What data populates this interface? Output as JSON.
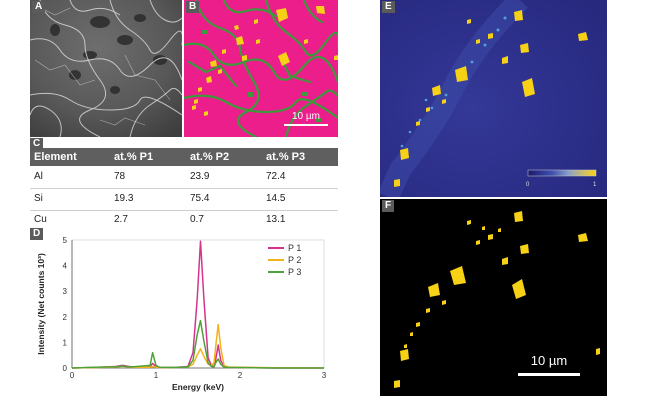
{
  "panels": {
    "a": {
      "label": "A"
    },
    "b": {
      "label": "B",
      "scale_bar": "10 µm"
    },
    "c": {
      "label": "C"
    },
    "d": {
      "label": "D"
    },
    "e": {
      "label": "E",
      "colorbar_min": "0",
      "colorbar_max": "1"
    },
    "f": {
      "label": "F",
      "scale_bar": "10 µm"
    }
  },
  "table": {
    "headers": [
      "Element",
      "at.% P1",
      "at.% P2",
      "at.% P3"
    ],
    "rows": [
      [
        "Al",
        "78",
        "23.9",
        "72.4"
      ],
      [
        "Si",
        "19.3",
        "75.4",
        "14.5"
      ],
      [
        "Cu",
        "2.7",
        "0.7",
        "13.1"
      ]
    ]
  },
  "colors": {
    "p1": "#d6338c",
    "p2": "#f2b21b",
    "p3": "#4da33a",
    "magenta_bg": "#ec1e8c",
    "phase_yellow": "#f7d116",
    "phase_green": "#3c9a3c",
    "map_blue": "#2d2f8f"
  },
  "chart_data": {
    "type": "line",
    "xlabel": "Energy (keV)",
    "ylabel": "Intensity (Net counts 10³)",
    "xlim": [
      0,
      3
    ],
    "ylim": [
      0,
      5
    ],
    "xticks": [
      "0",
      "1",
      "2",
      "3"
    ],
    "yticks": [
      "0",
      "1",
      "2",
      "3",
      "4",
      "5"
    ],
    "legend_position": "top-right",
    "series": [
      {
        "name": "P 1",
        "color": "#d6338c",
        "x": [
          0.0,
          0.26,
          0.52,
          0.6,
          0.7,
          0.93,
          0.96,
          1.0,
          1.04,
          1.2,
          1.38,
          1.44,
          1.49,
          1.53,
          1.57,
          1.62,
          1.66,
          1.69,
          1.71,
          1.74,
          1.77,
          1.81,
          1.86,
          2.0,
          2.4,
          3.0
        ],
        "y": [
          0.0,
          0.02,
          0.06,
          0.1,
          0.05,
          0.05,
          0.18,
          0.05,
          0.02,
          0.02,
          0.06,
          0.6,
          2.7,
          4.95,
          2.7,
          0.4,
          0.1,
          0.05,
          0.3,
          0.9,
          0.3,
          0.05,
          0.02,
          0.02,
          0.0,
          0.0
        ]
      },
      {
        "name": "P 2",
        "color": "#f2b21b",
        "x": [
          0.0,
          0.26,
          0.52,
          0.6,
          0.7,
          0.93,
          0.96,
          1.0,
          1.04,
          1.2,
          1.38,
          1.44,
          1.49,
          1.53,
          1.57,
          1.62,
          1.66,
          1.69,
          1.71,
          1.74,
          1.77,
          1.81,
          1.86,
          2.0,
          2.4,
          3.0
        ],
        "y": [
          0.0,
          0.02,
          0.04,
          0.07,
          0.03,
          0.03,
          0.06,
          0.03,
          0.02,
          0.02,
          0.04,
          0.15,
          0.5,
          0.75,
          0.45,
          0.15,
          0.1,
          0.2,
          0.8,
          1.7,
          0.8,
          0.1,
          0.04,
          0.03,
          0.01,
          0.0
        ]
      },
      {
        "name": "P 3",
        "color": "#4da33a",
        "x": [
          0.0,
          0.26,
          0.52,
          0.6,
          0.7,
          0.93,
          0.96,
          1.0,
          1.04,
          1.2,
          1.38,
          1.44,
          1.49,
          1.53,
          1.57,
          1.62,
          1.66,
          1.69,
          1.71,
          1.74,
          1.77,
          1.81,
          1.86,
          2.0,
          2.4,
          3.0
        ],
        "y": [
          0.0,
          0.03,
          0.05,
          0.08,
          0.04,
          0.1,
          0.6,
          0.1,
          0.03,
          0.02,
          0.04,
          0.3,
          1.3,
          1.85,
          1.05,
          0.2,
          0.06,
          0.05,
          0.2,
          0.35,
          0.15,
          0.04,
          0.02,
          0.02,
          0.0,
          0.0
        ]
      }
    ]
  }
}
